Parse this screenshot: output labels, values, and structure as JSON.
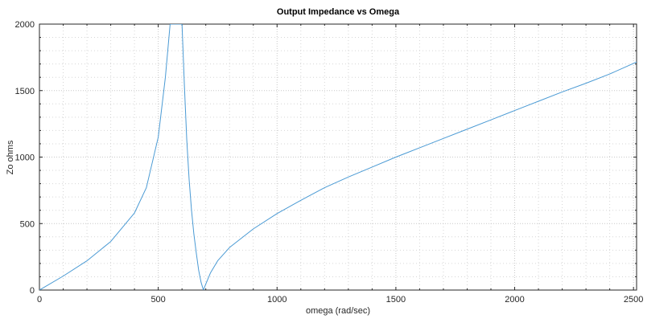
{
  "chart_data": {
    "type": "line",
    "title": "Output Impedance vs Omega",
    "xlabel": "omega (rad/sec)",
    "ylabel": "Zo ohms",
    "xlim": [
      0,
      2513
    ],
    "ylim": [
      0,
      2000
    ],
    "xticks": [
      0,
      500,
      1000,
      1500,
      2000,
      2500
    ],
    "yticks": [
      0,
      500,
      1000,
      1500,
      2000
    ],
    "grid": true,
    "line_color": "#4a9ad4",
    "series": [
      {
        "x": [
          0,
          100,
          200,
          300,
          400,
          450,
          500,
          530,
          550,
          560,
          570,
          580,
          590,
          600,
          610,
          620,
          630,
          640,
          650,
          660,
          670,
          680,
          690,
          700,
          720,
          750,
          800,
          900,
          1000,
          1100,
          1200,
          1300,
          1400,
          1500,
          1600,
          1700,
          1800,
          1900,
          2000,
          2100,
          2200,
          2300,
          2400,
          2513
        ],
        "y": [
          0,
          105,
          220,
          365,
          580,
          770,
          1150,
          1600,
          2000,
          2000,
          2000,
          2000,
          2000,
          2000,
          1540,
          1130,
          830,
          600,
          420,
          280,
          150,
          60,
          0,
          45,
          130,
          220,
          320,
          460,
          575,
          675,
          770,
          850,
          925,
          1000,
          1070,
          1140,
          1210,
          1280,
          1350,
          1420,
          1490,
          1555,
          1625,
          1715
        ]
      }
    ]
  }
}
